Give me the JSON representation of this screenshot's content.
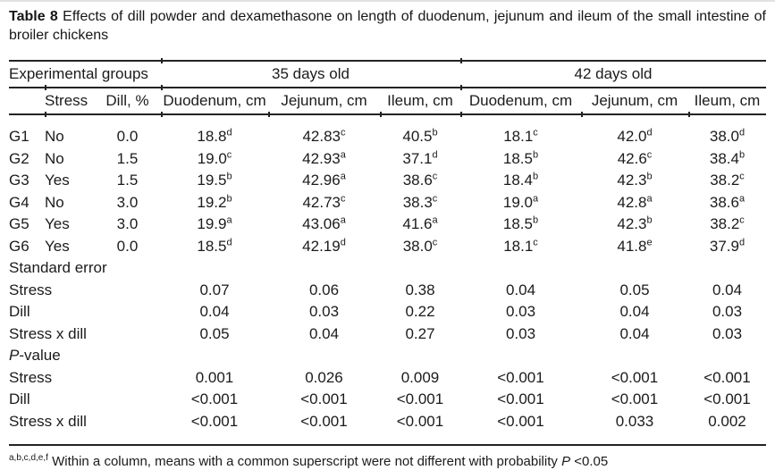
{
  "title": {
    "label": "Table 8",
    "text": " Effects of dill powder and dexamethasone on length of duodenum, jejunum and ileum of the small intestine of broiler chickens"
  },
  "table": {
    "top_header": {
      "experimental_groups": "Experimental groups",
      "age_35": "35 days old",
      "age_42": "42 days old"
    },
    "column_headers": [
      "Stress",
      "Dill, %",
      "Duodenum, cm",
      "Jejunum, cm",
      "Ileum, cm",
      "Duodenum, cm",
      "Jejunum, cm",
      "Ileum, cm"
    ],
    "groups": [
      {
        "group": "G1",
        "stress": "No",
        "dill": "0.0",
        "values": [
          {
            "v": "18.8",
            "sup": "d"
          },
          {
            "v": "42.83",
            "sup": "c"
          },
          {
            "v": "40.5",
            "sup": "b"
          },
          {
            "v": "18.1",
            "sup": "c"
          },
          {
            "v": "42.0",
            "sup": "d"
          },
          {
            "v": "38.0",
            "sup": "d"
          }
        ]
      },
      {
        "group": "G2",
        "stress": "No",
        "dill": "1.5",
        "values": [
          {
            "v": "19.0",
            "sup": "c"
          },
          {
            "v": "42.93",
            "sup": "a"
          },
          {
            "v": "37.1",
            "sup": "d"
          },
          {
            "v": "18.5",
            "sup": "b"
          },
          {
            "v": "42.6",
            "sup": "c"
          },
          {
            "v": "38.4",
            "sup": "b"
          }
        ]
      },
      {
        "group": "G3",
        "stress": "Yes",
        "dill": "1.5",
        "values": [
          {
            "v": "19.5",
            "sup": "b"
          },
          {
            "v": "42.96",
            "sup": "a"
          },
          {
            "v": "38.6",
            "sup": "c"
          },
          {
            "v": "18.4",
            "sup": "b"
          },
          {
            "v": "42.3",
            "sup": "b"
          },
          {
            "v": "38.2",
            "sup": "c"
          }
        ]
      },
      {
        "group": "G4",
        "stress": "No",
        "dill": "3.0",
        "values": [
          {
            "v": "19.2",
            "sup": "b"
          },
          {
            "v": "42.73",
            "sup": "c"
          },
          {
            "v": "38.3",
            "sup": "c"
          },
          {
            "v": "19.0",
            "sup": "a"
          },
          {
            "v": "42.8",
            "sup": "a"
          },
          {
            "v": "38.6",
            "sup": "a"
          }
        ]
      },
      {
        "group": "G5",
        "stress": "Yes",
        "dill": "3.0",
        "values": [
          {
            "v": "19.9",
            "sup": "a"
          },
          {
            "v": "43.06",
            "sup": "a"
          },
          {
            "v": "41.6",
            "sup": "a"
          },
          {
            "v": "18.5",
            "sup": "b"
          },
          {
            "v": "42.3",
            "sup": "b"
          },
          {
            "v": "38.2",
            "sup": "c"
          }
        ]
      },
      {
        "group": "G6",
        "stress": "Yes",
        "dill": "0.0",
        "values": [
          {
            "v": "18.5",
            "sup": "d"
          },
          {
            "v": "42.19",
            "sup": "d"
          },
          {
            "v": "38.0",
            "sup": "c"
          },
          {
            "v": "18.1",
            "sup": "c"
          },
          {
            "v": "41.8",
            "sup": "e"
          },
          {
            "v": "37.9",
            "sup": "d"
          }
        ]
      }
    ],
    "standard_error": {
      "label": "Standard error",
      "rows": [
        {
          "label": "Stress",
          "values": [
            "0.07",
            "0.06",
            "0.38",
            "0.04",
            "0.05",
            "0.04"
          ]
        },
        {
          "label": "Dill",
          "values": [
            "0.04",
            "0.03",
            "0.22",
            "0.03",
            "0.04",
            "0.03"
          ]
        },
        {
          "label": "Stress x dill",
          "values": [
            "0.05",
            "0.04",
            "0.27",
            "0.03",
            "0.04",
            "0.03"
          ]
        }
      ]
    },
    "p_value": {
      "label_italic": "P",
      "label_rest": "-value",
      "rows": [
        {
          "label": "Stress",
          "values": [
            "0.001",
            "0.026",
            "0.009",
            "<0.001",
            "<0.001",
            "<0.001"
          ]
        },
        {
          "label": "Dill",
          "values": [
            "<0.001",
            "<0.001",
            "<0.001",
            "<0.001",
            "<0.001",
            "<0.001"
          ]
        },
        {
          "label": "Stress x dill",
          "values": [
            "<0.001",
            "<0.001",
            "<0.001",
            "<0.001",
            "0.033",
            "0.002"
          ]
        }
      ]
    }
  },
  "footnote": {
    "superscript": "a,b,c,d,e,f",
    "text": " Within a column, means with a common superscript were not different with probability ",
    "p_italic": "P",
    "threshold": " <0.05"
  }
}
